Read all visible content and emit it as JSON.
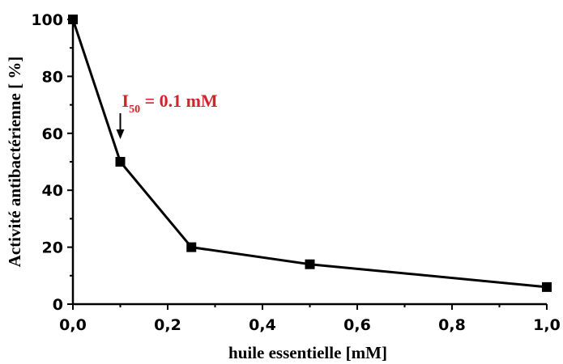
{
  "chart_data": {
    "type": "line",
    "title": "",
    "xlabel": "huile essentielle [mM]",
    "ylabel": "Activité antibactérienne [ %]",
    "xlim": [
      0,
      1.0
    ],
    "ylim": [
      0,
      100
    ],
    "xticks": [
      "0,0",
      "0,2",
      "0,4",
      "0,6",
      "0,8",
      "1,0"
    ],
    "yticks": [
      "0",
      "20",
      "40",
      "60",
      "80",
      "100"
    ],
    "grid": false,
    "legend": "none",
    "series": [
      {
        "x": [
          0.0,
          0.1,
          0.25,
          0.5,
          1.0
        ],
        "y": [
          100,
          50,
          20,
          14,
          6
        ]
      }
    ],
    "annotation": {
      "label_main": "I",
      "label_sub": "50",
      "label_rest": " = 0.1 mM",
      "x": 0.1,
      "color": "#d0252b"
    },
    "colors": {
      "line": "#000000",
      "marker": "#000000",
      "annotation": "#d0252b"
    }
  }
}
